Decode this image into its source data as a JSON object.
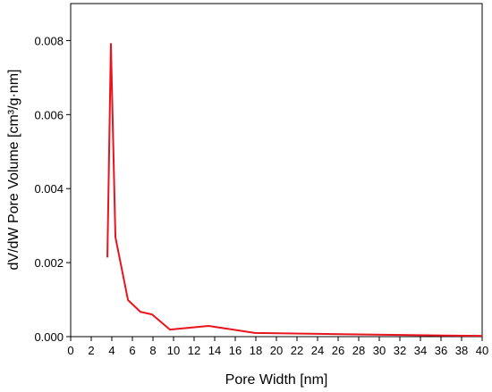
{
  "chart_data": {
    "type": "line",
    "x_label": "Pore Width [nm]",
    "y_label": "dV/dW Pore Volume [cm³/g·nm]",
    "x": [
      3.57,
      3.91,
      4.35,
      5.57,
      6.78,
      7.91,
      9.65,
      13.4,
      17.9,
      30.5,
      40
    ],
    "series": [
      {
        "color": "#e8141e",
        "values": [
          0.00214,
          0.00791,
          0.00269,
          0.00099,
          0.00067,
          0.0006,
          0.00019,
          0.00029,
          0.0001,
          5e-05,
          2e-05
        ]
      }
    ],
    "xlim": [
      0,
      40
    ],
    "xticks": [
      0,
      2,
      4,
      6,
      8,
      10,
      12,
      14,
      16,
      18,
      20,
      22,
      24,
      26,
      28,
      30,
      32,
      34,
      36,
      38,
      40
    ],
    "ylim": [
      0,
      0.009
    ],
    "yticks": [
      {
        "value": 0,
        "label": "0.000"
      },
      {
        "value": 0.002,
        "label": "0.002"
      },
      {
        "value": 0.004,
        "label": "0.004"
      },
      {
        "value": 0.006,
        "label": "0.006"
      },
      {
        "value": 0.008,
        "label": "0.008"
      }
    ]
  }
}
